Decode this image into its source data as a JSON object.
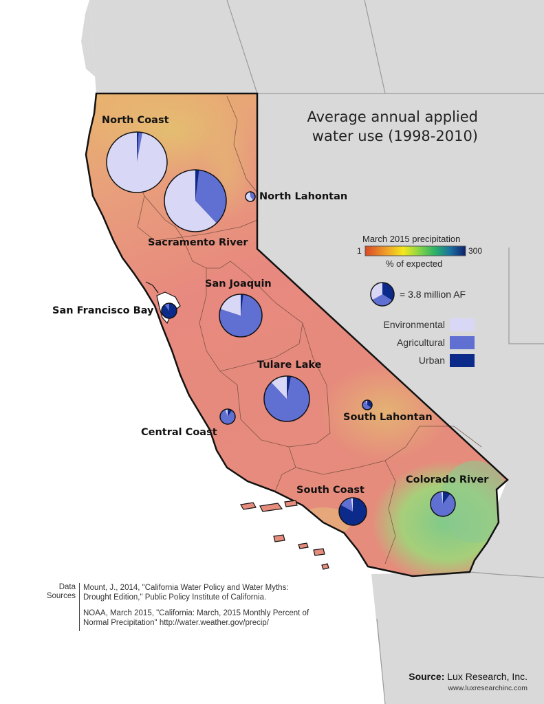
{
  "title_line1": "Average annual applied",
  "title_line2": "water use (1998-2010)",
  "legend": {
    "precip_title": "March 2015 precipitation",
    "min_label": "1",
    "max_label": "300",
    "subtitle": "% of expected",
    "pie_scale_text": "= 3.8 million AF",
    "categories": [
      {
        "label": "Environmental",
        "color": "#d8d8f6"
      },
      {
        "label": "Agricultural",
        "color": "#5f6fd2"
      },
      {
        "label": "Urban",
        "color": "#0c2a8a"
      }
    ],
    "gradient_colors": [
      "#d94a26",
      "#ef9a2a",
      "#f4e81d",
      "#7fd24a",
      "#29b06a",
      "#1b6fa1",
      "#0f1f6a"
    ]
  },
  "regions": [
    {
      "name": "North Coast",
      "env": 0.97,
      "ag": 0.02,
      "urban": 0.01
    },
    {
      "name": "Sacramento River",
      "env": 0.62,
      "ag": 0.36,
      "urban": 0.02
    },
    {
      "name": "North Lahontan",
      "env": 0.6,
      "ag": 0.38,
      "urban": 0.02
    },
    {
      "name": "San Francisco Bay",
      "env": 0.0,
      "ag": 0.1,
      "urban": 0.9
    },
    {
      "name": "San Joaquin",
      "env": 0.2,
      "ag": 0.78,
      "urban": 0.02
    },
    {
      "name": "Tulare Lake",
      "env": 0.12,
      "ag": 0.85,
      "urban": 0.03
    },
    {
      "name": "Central Coast",
      "env": 0.05,
      "ag": 0.85,
      "urban": 0.1
    },
    {
      "name": "South Lahontan",
      "env": 0.05,
      "ag": 0.6,
      "urban": 0.35
    },
    {
      "name": "South Coast",
      "env": 0.02,
      "ag": 0.15,
      "urban": 0.83
    },
    {
      "name": "Colorado River",
      "env": 0.02,
      "ag": 0.88,
      "urban": 0.1
    }
  ],
  "sources": {
    "heading": "Data Sources",
    "ref1": "Mount, J., 2014, \"California Water Policy and Water Myths: Drought Edition,\" Public Policy Institute of California.",
    "ref2": "NOAA, March 2015, \"California: March, 2015 Monthly Percent of Normal Precipitation\" http://water.weather.gov/precip/"
  },
  "credit": {
    "source_label": "Source",
    "source_org": "Lux Research, Inc.",
    "url": "www.luxresearchinc.com"
  }
}
